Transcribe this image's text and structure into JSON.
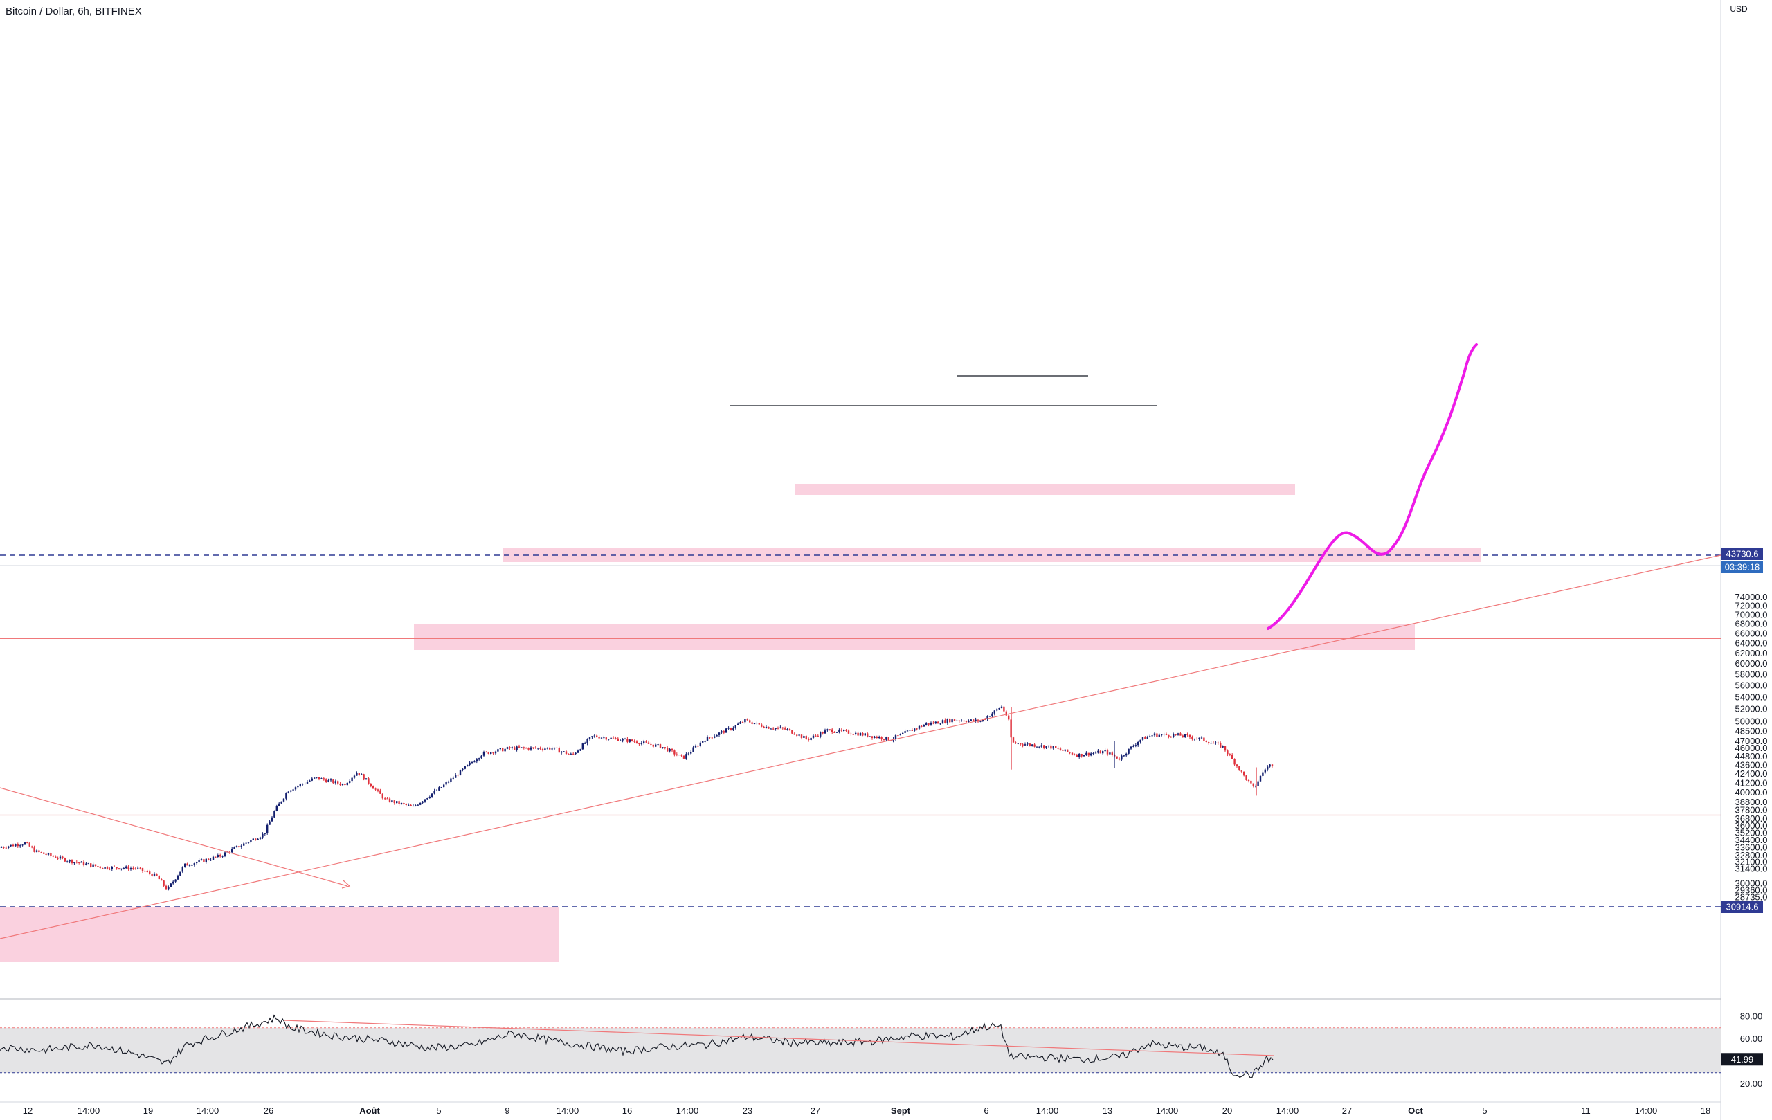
{
  "header": {
    "title": "Bitcoin / Dollar, 6h, BITFINEX"
  },
  "chart_data": {
    "type": "candlestick",
    "title": "Bitcoin / Dollar, 6h, BITFINEX",
    "currency_label": "USD",
    "y_ticks": [
      74000,
      72000,
      70000,
      68000,
      66000,
      64000,
      62000,
      60000,
      58000,
      56000,
      54000,
      52000,
      50000,
      48500,
      47000,
      46000,
      44800,
      43600,
      42400,
      41200,
      40000,
      38800,
      37800,
      36800,
      36000,
      35200,
      34400,
      33600,
      32800,
      32100,
      31400,
      30000,
      29360,
      28735
    ],
    "y_tick_labels": [
      "74000.0",
      "72000.0",
      "70000.0",
      "68000.0",
      "66000.0",
      "64000.0",
      "62000.0",
      "60000.0",
      "58000.0",
      "56000.0",
      "54000.0",
      "52000.0",
      "50000.0",
      "48500.0",
      "47000.0",
      "46000.0",
      "44800.0",
      "43600.0",
      "42400.0",
      "41200.0",
      "40000.0",
      "38800.0",
      "37800.0",
      "36800.0",
      "36000.0",
      "35200.0",
      "34400.0",
      "33600.0",
      "32800.0",
      "32100.0",
      "31400.0",
      "30000.0",
      "29360.0",
      "28735.0"
    ],
    "x_tick_labels": [
      "12",
      "14:00",
      "19",
      "14:00",
      "26",
      "Août",
      "5",
      "9",
      "14:00",
      "16",
      "14:00",
      "23",
      "27",
      "Sept",
      "6",
      "14:00",
      "13",
      "14:00",
      "20",
      "14:00",
      "27",
      "Oct",
      "5",
      "11",
      "14:00",
      "18"
    ],
    "last_price": "43730.6",
    "countdown": "03:39:18",
    "support_level": "30914.6",
    "key_levels": [
      65000,
      37250
    ],
    "up_color": "#131f6e",
    "down_color": "#e0313c",
    "zone_color": "#f9c9d9",
    "projection_color": "#ee1be7",
    "rsi": {
      "current": "41.99",
      "y_tick_labels": [
        "80.00",
        "60.00",
        "40.00",
        "20.00"
      ],
      "upper_band": 70,
      "lower_band": 30
    }
  }
}
